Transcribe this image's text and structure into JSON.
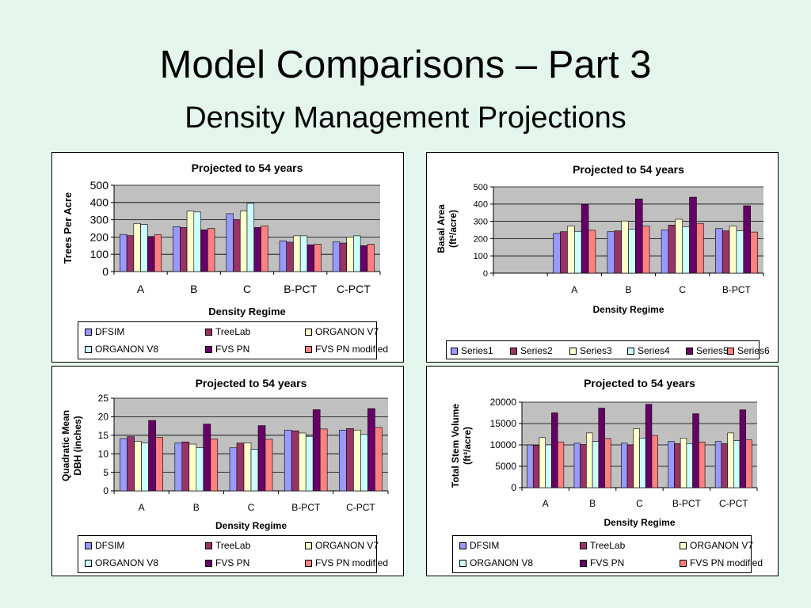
{
  "slide": {
    "title": "Model Comparisons – Part 3",
    "subtitle": "Density Management Projections"
  },
  "colors": {
    "background": "#e3f5ec",
    "plot_area": "#c0c0c0",
    "series": [
      "#9999ff",
      "#993366",
      "#ffffcc",
      "#ccffff",
      "#660066",
      "#ff8080"
    ]
  },
  "chart_data": [
    {
      "type": "bar",
      "title": "Projected to 54 years",
      "xlabel": "Density Regime",
      "ylabel": "Trees Per Acre",
      "ylim": [
        0,
        500
      ],
      "yticks": [
        "0",
        "100",
        "200",
        "300",
        "400",
        "500"
      ],
      "categories": [
        "A",
        "B",
        "C",
        "B-PCT",
        "C-PCT"
      ],
      "grid": true,
      "legend_position": "bottom",
      "series": [
        {
          "name": "DFSIM",
          "values": [
            215,
            260,
            335,
            178,
            172
          ]
        },
        {
          "name": "TreeLab",
          "values": [
            208,
            255,
            300,
            170,
            165
          ]
        },
        {
          "name": "ORGANON V7",
          "values": [
            278,
            350,
            350,
            207,
            200
          ]
        },
        {
          "name": "ORGANON V8",
          "values": [
            272,
            345,
            395,
            207,
            207
          ]
        },
        {
          "name": "FVS PN",
          "values": [
            203,
            242,
            255,
            155,
            150
          ]
        },
        {
          "name": "FVS PN modified",
          "values": [
            213,
            250,
            265,
            158,
            158
          ]
        }
      ]
    },
    {
      "type": "bar",
      "title": "Projected to 54 years",
      "xlabel": "Density Regime",
      "ylabel": "Basal Area",
      "ylabel2": "(ft²/acre)",
      "ylim": [
        0,
        500
      ],
      "yticks": [
        "0",
        "100",
        "200",
        "300",
        "400",
        "500"
      ],
      "categories": [
        "",
        "A",
        "B",
        "C",
        "B-PCT"
      ],
      "grid": true,
      "legend_position": "bottom",
      "series": [
        {
          "name": "Series1",
          "values": [
            null,
            230,
            240,
            250,
            258
          ]
        },
        {
          "name": "Series2",
          "values": [
            null,
            240,
            245,
            278,
            245
          ]
        },
        {
          "name": "Series3",
          "values": [
            null,
            272,
            302,
            312,
            272
          ]
        },
        {
          "name": "Series4",
          "values": [
            null,
            242,
            255,
            268,
            245
          ]
        },
        {
          "name": "Series5",
          "values": [
            null,
            398,
            430,
            440,
            390
          ]
        },
        {
          "name": "Series6",
          "values": [
            null,
            248,
            272,
            288,
            238
          ]
        }
      ]
    },
    {
      "type": "bar",
      "title": "Projected to 54 years",
      "xlabel": "Density Regime",
      "ylabel": "Quadratic Mean",
      "ylabel2": "DBH (inches)",
      "ylim": [
        0,
        25
      ],
      "yticks": [
        "0",
        "5",
        "10",
        "15",
        "20",
        "25"
      ],
      "categories": [
        "A",
        "B",
        "C",
        "B-PCT",
        "C-PCT"
      ],
      "grid": true,
      "legend_position": "bottom",
      "series": [
        {
          "name": "DFSIM",
          "values": [
            14.1,
            12.9,
            11.6,
            16.4,
            16.4
          ]
        },
        {
          "name": "TreeLab",
          "values": [
            14.6,
            13.2,
            12.9,
            16.2,
            16.8
          ]
        },
        {
          "name": "ORGANON V7",
          "values": [
            13.4,
            12.6,
            12.9,
            15.6,
            16.4
          ]
        },
        {
          "name": "ORGANON V8",
          "values": [
            12.9,
            11.6,
            11.2,
            14.7,
            15.2
          ]
        },
        {
          "name": "FVS PN",
          "values": [
            19.0,
            18.0,
            17.6,
            21.9,
            22.2
          ]
        },
        {
          "name": "FVS PN modified",
          "values": [
            14.4,
            14.0,
            13.9,
            16.7,
            17.1
          ]
        }
      ]
    },
    {
      "type": "bar",
      "title": "Projected to 54 years",
      "xlabel": "Density Regime",
      "ylabel": "Total Stem Volume",
      "ylabel2": "(ft³/acre)",
      "ylim": [
        0,
        20000
      ],
      "yticks": [
        "0",
        "5000",
        "10000",
        "15000",
        "20000"
      ],
      "categories": [
        "A",
        "B",
        "C",
        "B-PCT",
        "C-PCT"
      ],
      "grid": true,
      "legend_position": "bottom",
      "series": [
        {
          "name": "DFSIM",
          "values": [
            10000,
            10400,
            10400,
            10800,
            10800
          ]
        },
        {
          "name": "TreeLab",
          "values": [
            9900,
            10100,
            10000,
            10300,
            10300
          ]
        },
        {
          "name": "ORGANON V7",
          "values": [
            11700,
            12800,
            13800,
            11600,
            12800
          ]
        },
        {
          "name": "ORGANON V8",
          "values": [
            10000,
            10800,
            11600,
            10300,
            11000
          ]
        },
        {
          "name": "FVS PN",
          "values": [
            17500,
            18600,
            19500,
            17300,
            18200
          ]
        },
        {
          "name": "FVS PN modified",
          "values": [
            10700,
            11500,
            12200,
            10700,
            11200
          ]
        }
      ]
    }
  ]
}
